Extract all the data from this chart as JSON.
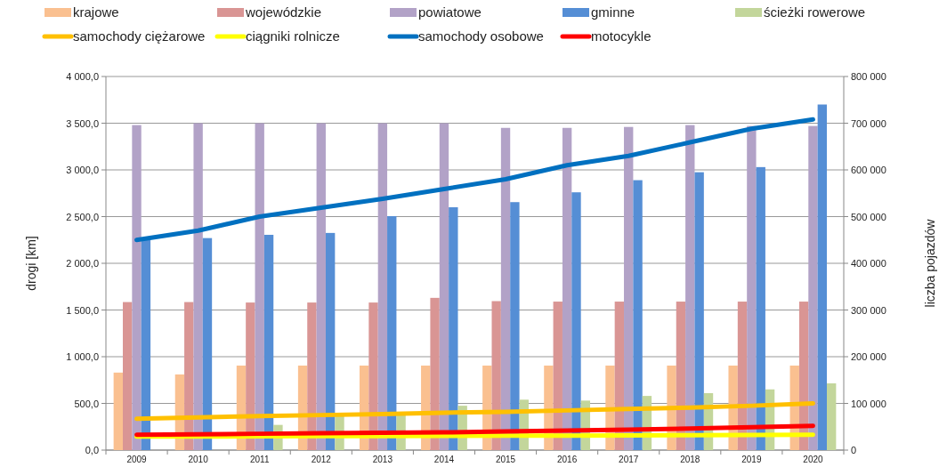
{
  "chart_data": {
    "type": "bar",
    "categories": [
      "2009",
      "2010",
      "2011",
      "2012",
      "2013",
      "2014",
      "2015",
      "2016",
      "2017",
      "2018",
      "2019",
      "2020"
    ],
    "ylabel": "drogi [km]",
    "y2label": "liczba pojazdów",
    "ylim": [
      0,
      4000
    ],
    "yticks": [
      {
        "value": 0,
        "label": "0,0"
      },
      {
        "value": 500,
        "label": "500,0"
      },
      {
        "value": 1000,
        "label": "1 000,0"
      },
      {
        "value": 1500,
        "label": "1 500,0"
      },
      {
        "value": 2000,
        "label": "2 000,0"
      },
      {
        "value": 2500,
        "label": "2 500,0"
      },
      {
        "value": 3000,
        "label": "3 000,0"
      },
      {
        "value": 3500,
        "label": "3 500,0"
      },
      {
        "value": 4000,
        "label": "4 000,0"
      }
    ],
    "y2lim": [
      0,
      800000
    ],
    "y2ticks": [
      {
        "value": 0,
        "label": "0"
      },
      {
        "value": 100000,
        "label": "100 000"
      },
      {
        "value": 200000,
        "label": "200 000"
      },
      {
        "value": 300000,
        "label": "300 000"
      },
      {
        "value": 400000,
        "label": "400 000"
      },
      {
        "value": 500000,
        "label": "500 000"
      },
      {
        "value": 600000,
        "label": "600 000"
      },
      {
        "value": 700000,
        "label": "700 000"
      },
      {
        "value": 800000,
        "label": "800 000"
      }
    ],
    "grid": "y",
    "legend": "top",
    "series": [
      {
        "name": "krajowe",
        "color": "#fac090",
        "values": [
          830,
          810,
          905,
          905,
          905,
          905,
          905,
          905,
          905,
          905,
          905,
          905
        ]
      },
      {
        "name": "wojewódzkie",
        "color": "#d99594",
        "values": [
          1585,
          1585,
          1580,
          1580,
          1580,
          1630,
          1595,
          1590,
          1590,
          1590,
          1590,
          1590
        ]
      },
      {
        "name": "powiatowe",
        "color": "#b2a2c7",
        "values": [
          3480,
          3500,
          3500,
          3500,
          3500,
          3500,
          3450,
          3450,
          3460,
          3480,
          3470,
          3470
        ]
      },
      {
        "name": "gminne",
        "color": "#558ed5",
        "values": [
          2250,
          2270,
          2305,
          2325,
          2505,
          2600,
          2655,
          2760,
          2890,
          2975,
          3030,
          3700
        ]
      },
      {
        "name": "ścieżki rowerowe",
        "color": "#c3d69b",
        "values": [
          null,
          null,
          270,
          380,
          385,
          475,
          540,
          530,
          580,
          610,
          650,
          715
        ]
      },
      {
        "name": "samochody ciężarowe",
        "type": "line",
        "axis": "y2",
        "color": "#ffc000",
        "values": [
          67000,
          70000,
          73000,
          75000,
          77000,
          80000,
          82000,
          85000,
          88000,
          91000,
          95000,
          100000
        ]
      },
      {
        "name": "ciągniki rolnicze",
        "type": "line",
        "axis": "y2",
        "color": "#ffff00",
        "values": [
          29000,
          29000,
          29500,
          30000,
          30000,
          30500,
          31000,
          31000,
          31500,
          32000,
          32500,
          33000
        ]
      },
      {
        "name": "samochody osobowe",
        "type": "line",
        "axis": "y2",
        "color": "#0070c0",
        "values": [
          450000,
          470000,
          500000,
          519000,
          538000,
          559000,
          580000,
          610000,
          630000,
          659000,
          688000,
          708000
        ]
      },
      {
        "name": "motocykle",
        "type": "line",
        "axis": "y2",
        "color": "#ff0000",
        "values": [
          33000,
          34000,
          35000,
          36000,
          37000,
          38000,
          40000,
          42000,
          44000,
          46000,
          49000,
          52000
        ]
      }
    ]
  }
}
